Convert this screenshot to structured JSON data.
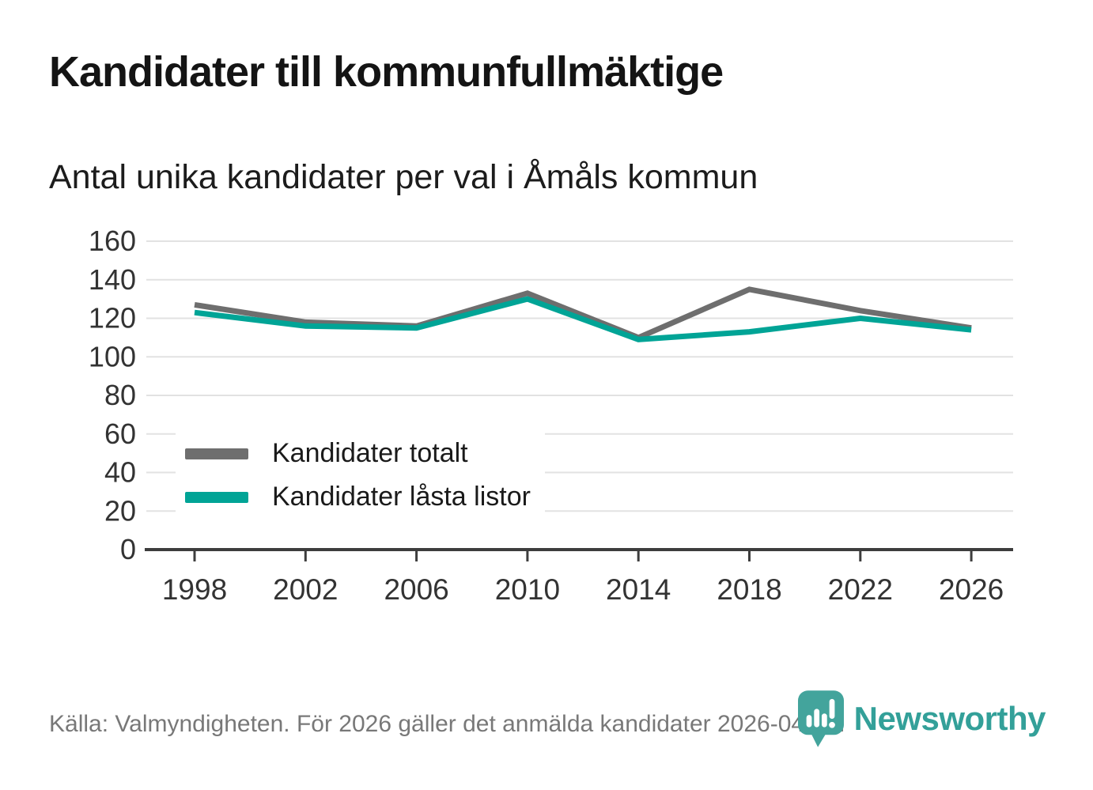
{
  "header": {
    "title": "Kandidater till kommunfullmäktige",
    "subtitle": "Antal unika kandidater per val i Åmåls kommun"
  },
  "chart_data": {
    "type": "line",
    "title": "Kandidater till kommunfullmäktige",
    "subtitle": "Antal unika kandidater per val i Åmåls kommun",
    "x": [
      1998,
      2002,
      2006,
      2010,
      2014,
      2018,
      2022,
      2026
    ],
    "series": [
      {
        "name": "Kandidater totalt",
        "color": "#6E6E6E",
        "values": [
          127,
          118,
          116,
          133,
          110,
          135,
          124,
          115
        ]
      },
      {
        "name": "Kandidater låsta listor",
        "color": "#00A496",
        "values": [
          123,
          116,
          115,
          130,
          109,
          113,
          120,
          114
        ]
      }
    ],
    "xlabel": "",
    "ylabel": "",
    "ylim": [
      0,
      160
    ],
    "y_ticks": [
      0,
      20,
      40,
      60,
      80,
      100,
      120,
      140,
      160
    ],
    "grid": "horizontal-light",
    "legend_position": "inside-bottom-left"
  },
  "footer": {
    "source": "Källa: Valmyndigheten. För 2026 gäller det anmälda kandidater 2026-04-10."
  },
  "branding": {
    "wordmark": "Newsworthy",
    "logo_icon": "newsworthy-pin-barchart-icon",
    "wordmark_color": "#33A099",
    "pin_color": "#43A49C"
  },
  "colors": {
    "background": "#FFFFFF",
    "grid": "#E2E2E2",
    "axis": "#3D3D3D",
    "tick_label": "#333333",
    "legend_text": "#1A1A1A",
    "footer_text": "#787878"
  }
}
